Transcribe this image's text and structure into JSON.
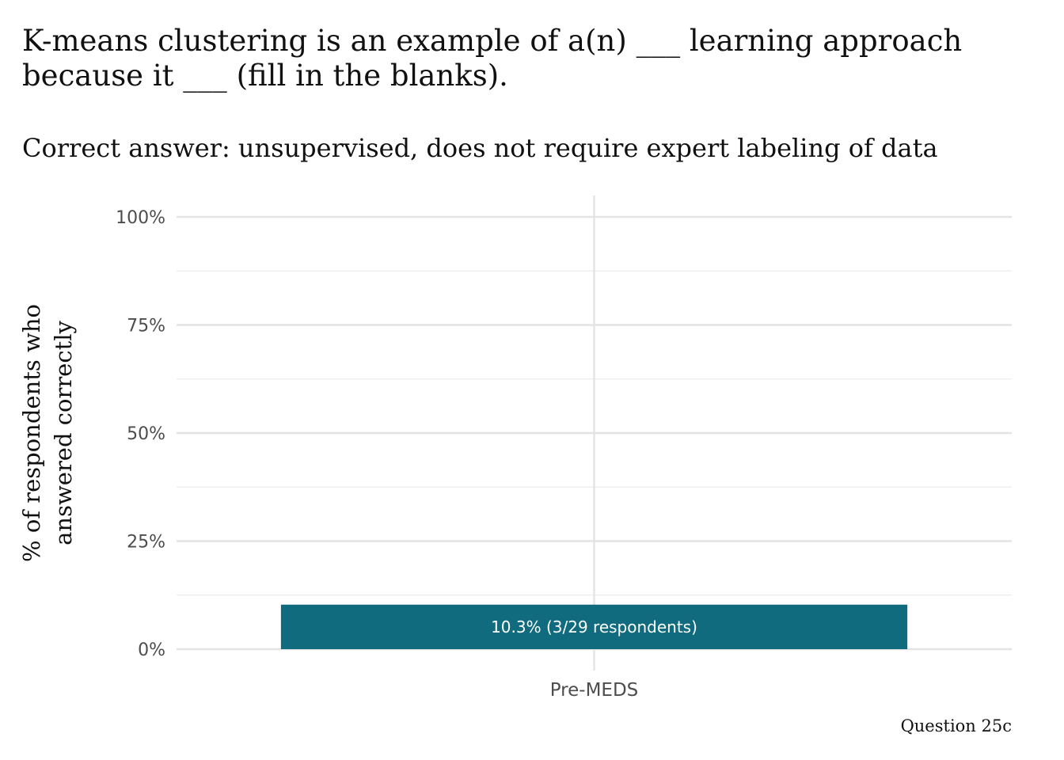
{
  "title": "K-means clustering is an example of a(n) ___ learning approach because it ___ (fill in the blanks).",
  "subtitle": "Correct answer: unsupervised, does not require expert labeling of data",
  "caption": "Question 25c",
  "chart_data": {
    "type": "bar",
    "categories": [
      "Pre-MEDS"
    ],
    "values": [
      10.3
    ],
    "data_labels": [
      "10.3% (3/29 respondents)"
    ],
    "ylabel": "% of respondents who answered correctly",
    "xlabel": "",
    "ylim": [
      0,
      100
    ],
    "yticks": [
      0,
      25,
      50,
      75,
      100
    ],
    "ytick_labels": [
      "0%",
      "25%",
      "50%",
      "75%",
      "100%"
    ],
    "grid": true,
    "legend": "none",
    "bar_color": "#106B7F"
  }
}
